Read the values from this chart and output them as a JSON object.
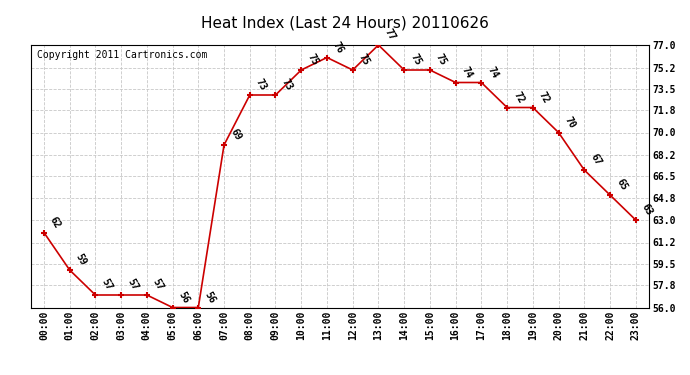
{
  "title": "Heat Index (Last 24 Hours) 20110626",
  "copyright_text": "Copyright 2011 Cartronics.com",
  "hours": [
    "00:00",
    "01:00",
    "02:00",
    "03:00",
    "04:00",
    "05:00",
    "06:00",
    "07:00",
    "08:00",
    "09:00",
    "10:00",
    "11:00",
    "12:00",
    "13:00",
    "14:00",
    "15:00",
    "16:00",
    "17:00",
    "18:00",
    "19:00",
    "20:00",
    "21:00",
    "22:00",
    "23:00"
  ],
  "values": [
    62,
    59,
    57,
    57,
    57,
    56,
    56,
    69,
    73,
    73,
    75,
    76,
    75,
    77,
    75,
    75,
    74,
    74,
    72,
    72,
    70,
    67,
    65,
    63
  ],
  "ylim": [
    56.0,
    77.0
  ],
  "yticks": [
    56.0,
    57.8,
    59.5,
    61.2,
    63.0,
    64.8,
    66.5,
    68.2,
    70.0,
    71.8,
    73.5,
    75.2,
    77.0
  ],
  "line_color": "#cc0000",
  "marker_color": "#cc0000",
  "bg_color": "#ffffff",
  "grid_color": "#c8c8c8",
  "title_fontsize": 11,
  "tick_fontsize": 7,
  "annotation_fontsize": 7,
  "copyright_fontsize": 7
}
